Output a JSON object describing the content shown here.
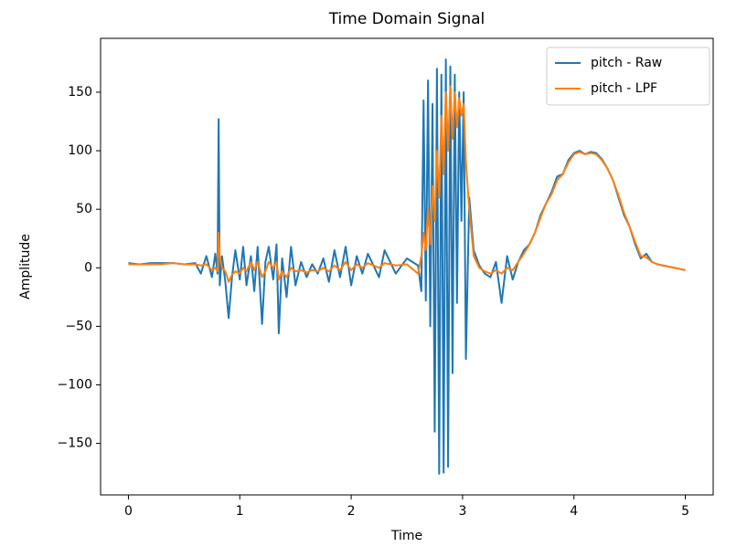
{
  "chart_data": {
    "type": "line",
    "title": "Time Domain Signal",
    "xlabel": "Time",
    "ylabel": "Amplitude",
    "x": [
      0,
      0.1,
      0.2,
      0.3,
      0.4,
      0.5,
      0.6,
      0.65,
      0.7,
      0.75,
      0.78,
      0.8,
      0.81,
      0.82,
      0.84,
      0.87,
      0.9,
      0.93,
      0.96,
      1.0,
      1.03,
      1.06,
      1.1,
      1.13,
      1.16,
      1.2,
      1.23,
      1.26,
      1.3,
      1.33,
      1.35,
      1.38,
      1.42,
      1.46,
      1.5,
      1.55,
      1.6,
      1.65,
      1.7,
      1.75,
      1.8,
      1.85,
      1.9,
      1.95,
      2.0,
      2.05,
      2.1,
      2.15,
      2.2,
      2.25,
      2.3,
      2.4,
      2.5,
      2.6,
      2.63,
      2.65,
      2.67,
      2.69,
      2.71,
      2.73,
      2.75,
      2.77,
      2.79,
      2.81,
      2.83,
      2.85,
      2.87,
      2.89,
      2.91,
      2.93,
      2.95,
      2.97,
      2.99,
      3.01,
      3.03,
      3.06,
      3.1,
      3.15,
      3.2,
      3.25,
      3.3,
      3.35,
      3.4,
      3.45,
      3.5,
      3.55,
      3.6,
      3.65,
      3.7,
      3.75,
      3.8,
      3.85,
      3.9,
      3.95,
      4.0,
      4.05,
      4.1,
      4.15,
      4.2,
      4.25,
      4.3,
      4.35,
      4.4,
      4.45,
      4.5,
      4.55,
      4.6,
      4.65,
      4.7,
      4.75,
      4.8,
      4.85,
      4.9,
      4.95,
      5.0
    ],
    "series": [
      {
        "name": "pitch - Raw",
        "color": "#1f77b4",
        "values": [
          4,
          3,
          4,
          4,
          4,
          3,
          4,
          -5,
          10,
          -8,
          12,
          -5,
          127,
          -15,
          10,
          -12,
          -43,
          -8,
          15,
          -10,
          18,
          -15,
          10,
          -20,
          18,
          -48,
          5,
          18,
          -10,
          20,
          -56,
          8,
          -25,
          18,
          -15,
          5,
          -8,
          3,
          -5,
          8,
          -12,
          15,
          -8,
          18,
          -15,
          10,
          -5,
          12,
          2,
          -8,
          15,
          -5,
          8,
          2,
          -20,
          143,
          -28,
          160,
          -50,
          140,
          -140,
          170,
          -176,
          165,
          -175,
          178,
          -170,
          172,
          -90,
          165,
          -30,
          150,
          40,
          150,
          -78,
          60,
          15,
          2,
          -5,
          -8,
          5,
          -30,
          10,
          -10,
          5,
          15,
          20,
          30,
          45,
          55,
          65,
          78,
          80,
          92,
          98,
          100,
          97,
          99,
          98,
          93,
          85,
          75,
          60,
          45,
          35,
          20,
          8,
          12,
          5,
          3,
          2,
          1,
          0,
          -1,
          -2
        ]
      },
      {
        "name": "pitch - LPF",
        "color": "#ff7f0e",
        "values": [
          3,
          3,
          3,
          3,
          4,
          3,
          3,
          2,
          3,
          -2,
          0,
          -3,
          30,
          10,
          0,
          -3,
          -12,
          -6,
          -3,
          -5,
          0,
          -3,
          5,
          -2,
          5,
          -8,
          -3,
          5,
          0,
          5,
          -10,
          -3,
          -8,
          0,
          -3,
          -2,
          -4,
          -2,
          -3,
          0,
          -3,
          2,
          -2,
          5,
          -2,
          3,
          0,
          4,
          2,
          0,
          4,
          2,
          3,
          -5,
          10,
          30,
          15,
          50,
          20,
          70,
          40,
          100,
          60,
          130,
          80,
          150,
          100,
          155,
          110,
          150,
          120,
          145,
          130,
          140,
          90,
          50,
          10,
          0,
          -3,
          -5,
          -2,
          -5,
          0,
          -2,
          5,
          12,
          20,
          30,
          43,
          55,
          63,
          75,
          80,
          90,
          97,
          99,
          97,
          98,
          97,
          92,
          85,
          75,
          62,
          47,
          35,
          22,
          10,
          9,
          5,
          3,
          2,
          1,
          0,
          -1,
          -2
        ]
      }
    ],
    "xlim": [
      -0.25,
      5.25
    ],
    "ylim": [
      -194,
      196
    ],
    "xticks": [
      0,
      1,
      2,
      3,
      4,
      5
    ],
    "yticks": [
      {
        "value": -150,
        "label": "−150"
      },
      {
        "value": -100,
        "label": "−100"
      },
      {
        "value": -50,
        "label": "−50"
      },
      0,
      50,
      100,
      150
    ],
    "legend": "upper right"
  }
}
